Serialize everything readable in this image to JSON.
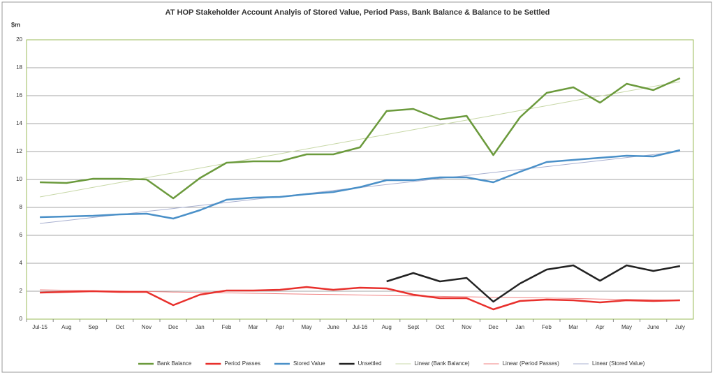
{
  "chart_data": {
    "type": "line",
    "title": "AT HOP Stakeholder Account Analyis of Stored Value, Period Pass, Bank Balance & Balance to be Settled",
    "y_label": "$m",
    "categories": [
      "Jul-15",
      "Aug",
      "Sep",
      "Oct",
      "Nov",
      "Dec",
      "Jan",
      "Feb",
      "Mar",
      "Apr",
      "May",
      "June",
      "Jul-16",
      "Aug",
      "Sept",
      "Oct",
      "Nov",
      "Dec",
      "Jan",
      "Feb",
      "Mar",
      "Apr",
      "May",
      "June",
      "July"
    ],
    "series": [
      {
        "name": "Bank Balance",
        "color": "#6b9a3c",
        "width": 2.5,
        "values": [
          9.8,
          9.75,
          10.05,
          10.05,
          10.0,
          8.65,
          10.1,
          11.2,
          11.3,
          11.3,
          11.8,
          11.8,
          12.3,
          14.9,
          15.05,
          14.3,
          14.55,
          11.75,
          14.45,
          16.2,
          16.6,
          15.5,
          16.85,
          16.4,
          17.25
        ]
      },
      {
        "name": "Period Passes",
        "color": "#e8302c",
        "width": 2.5,
        "values": [
          1.9,
          1.95,
          2.0,
          1.95,
          1.95,
          1.0,
          1.75,
          2.05,
          2.05,
          2.1,
          2.3,
          2.1,
          2.25,
          2.2,
          1.75,
          1.5,
          1.5,
          0.7,
          1.3,
          1.4,
          1.35,
          1.2,
          1.35,
          1.3,
          1.35
        ]
      },
      {
        "name": "Stored Value",
        "color": "#4a90c8",
        "width": 2.5,
        "values": [
          7.3,
          7.35,
          7.4,
          7.5,
          7.55,
          7.2,
          7.8,
          8.55,
          8.7,
          8.75,
          8.95,
          9.1,
          9.45,
          9.95,
          9.95,
          10.15,
          10.15,
          9.8,
          10.55,
          11.25,
          11.4,
          11.55,
          11.7,
          11.65,
          12.1
        ]
      },
      {
        "name": "Unsettled",
        "color": "#222222",
        "width": 2.5,
        "values": [
          null,
          null,
          null,
          null,
          null,
          null,
          null,
          null,
          null,
          null,
          null,
          null,
          null,
          2.7,
          3.3,
          2.7,
          2.95,
          1.25,
          2.55,
          3.55,
          3.85,
          2.75,
          3.85,
          3.45,
          3.8
        ]
      },
      {
        "name": "Linear (Bank Balance)",
        "color": "#c8d8a8",
        "width": 1,
        "values": [
          8.75,
          9.09,
          9.44,
          9.78,
          10.13,
          10.47,
          10.81,
          11.16,
          11.5,
          11.84,
          12.19,
          12.53,
          12.88,
          13.22,
          13.56,
          13.91,
          14.25,
          14.59,
          14.94,
          15.28,
          15.63,
          15.97,
          16.31,
          16.66,
          17.0
        ]
      },
      {
        "name": "Linear (Period Passes)",
        "color": "#f08080",
        "width": 1,
        "values": [
          2.1,
          2.07,
          2.04,
          2.01,
          1.98,
          1.94,
          1.91,
          1.88,
          1.85,
          1.82,
          1.79,
          1.76,
          1.73,
          1.69,
          1.66,
          1.63,
          1.6,
          1.57,
          1.54,
          1.51,
          1.48,
          1.44,
          1.41,
          1.38,
          1.35
        ]
      },
      {
        "name": "Linear (Stored Value)",
        "color": "#a8b0d0",
        "width": 1,
        "values": [
          6.85,
          7.06,
          7.28,
          7.49,
          7.71,
          7.92,
          8.14,
          8.35,
          8.57,
          8.78,
          8.99,
          9.21,
          9.42,
          9.64,
          9.85,
          10.07,
          10.28,
          10.5,
          10.71,
          10.92,
          11.14,
          11.35,
          11.57,
          11.78,
          12.0
        ]
      }
    ],
    "ylim": [
      0,
      20
    ],
    "yticks": [
      0,
      2,
      4,
      6,
      8,
      10,
      12,
      14,
      16,
      18,
      20
    ],
    "grid": true,
    "legend": "bottom"
  }
}
